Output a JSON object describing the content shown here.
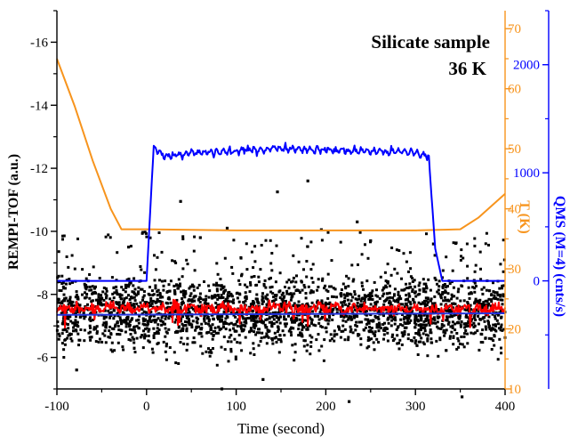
{
  "chart_data": {
    "type": "scatter",
    "annotations": [
      "Silicate sample",
      "36 K"
    ],
    "xlabel": "Time (second)",
    "xlim": [
      -100,
      400
    ],
    "x_ticks": [
      "-100",
      "0",
      "100",
      "200",
      "300",
      "400"
    ],
    "axes": {
      "left": {
        "label": "REMPI-TOF  (a.u.)",
        "range": [
          -5,
          -17
        ],
        "ticks": [
          "-16",
          "-14",
          "-12",
          "-10",
          "-8",
          "-6"
        ],
        "color": "#000000"
      },
      "right_temperature": {
        "label": "T (K)",
        "range": [
          10,
          73
        ],
        "ticks": [
          "10",
          "20",
          "30",
          "40",
          "50",
          "60",
          "70"
        ],
        "color": "#f7941d"
      },
      "right_qms": {
        "label": "QMS (M=4)  (cnts/s)",
        "range": [
          -1000,
          2500
        ],
        "ticks": [
          "0",
          "1000",
          "2000"
        ],
        "color": "#0000ff"
      }
    },
    "series": [
      {
        "kind": "scatter",
        "axis": "left",
        "color": "#000000",
        "mean": -7.4,
        "spread": 0.55,
        "outliers": [
          {
            "x": 38,
            "y": -10.95
          },
          {
            "x": 146,
            "y": -11.25
          },
          {
            "x": 180,
            "y": -11.6
          },
          {
            "x": 235,
            "y": -10.3
          },
          {
            "x": 90,
            "y": -10.1
          },
          {
            "x": 195,
            "y": -10.05
          },
          {
            "x": 60,
            "y": -9.8
          },
          {
            "x": 250,
            "y": -9.7
          },
          {
            "x": 320,
            "y": -9.6
          },
          {
            "x": -20,
            "y": -9.5
          },
          {
            "x": 130,
            "y": -5.3
          },
          {
            "x": 226,
            "y": -4.6
          },
          {
            "x": 352,
            "y": -4.75
          },
          {
            "x": 84,
            "y": -5.0
          },
          {
            "x": -78,
            "y": -5.6
          }
        ]
      },
      {
        "kind": "line",
        "axis": "left",
        "color": "#ff0000",
        "mean": -7.55
      },
      {
        "kind": "line",
        "axis": "left",
        "color": "#2233dd",
        "x": [
          -100,
          400
        ],
        "y": [
          -7.35,
          -7.4
        ]
      },
      {
        "kind": "line",
        "axis": "right_temperature",
        "color": "#f7941d",
        "x": [
          -100,
          -80,
          -60,
          -40,
          -28,
          0,
          100,
          200,
          300,
          350,
          370,
          400
        ],
        "y": [
          65,
          57,
          48,
          40,
          36.6,
          36.6,
          36.4,
          36.4,
          36.4,
          36.6,
          38.5,
          42.5
        ]
      },
      {
        "kind": "line",
        "axis": "right_qms",
        "color": "#0000ff",
        "x": [
          -100,
          0,
          8,
          20,
          50,
          100,
          150,
          200,
          250,
          300,
          315,
          322,
          330,
          400
        ],
        "y": [
          0,
          0,
          1250,
          1150,
          1180,
          1200,
          1230,
          1210,
          1200,
          1190,
          1140,
          300,
          0,
          0
        ]
      }
    ]
  }
}
